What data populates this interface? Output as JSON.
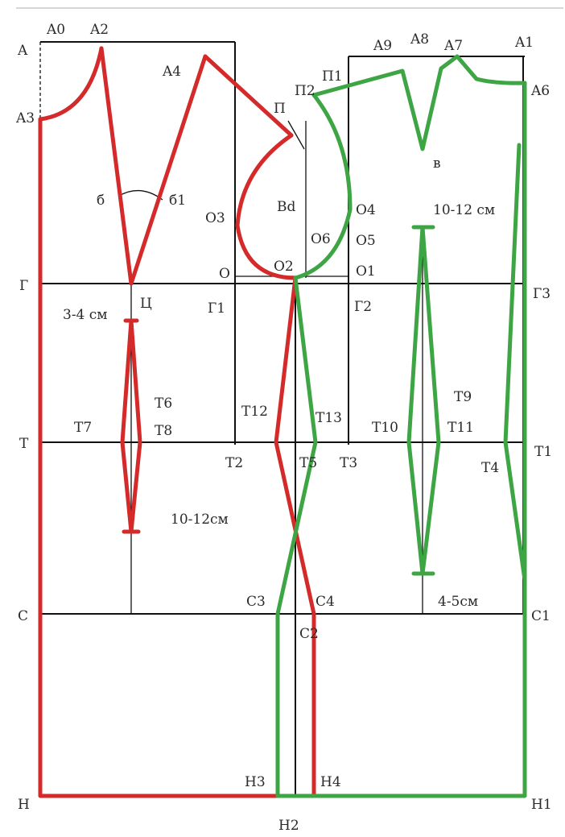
{
  "colors": {
    "back": "#d42a2a",
    "front": "#3da544",
    "lines": "#111111"
  },
  "labels": {
    "A": "A",
    "A0": "A0",
    "A2": "A2",
    "A3": "A3",
    "A4": "A4",
    "A9": "A9",
    "A8": "A8",
    "A7": "A7",
    "A1": "A1",
    "A6": "A6",
    "P": "П",
    "P1": "П1",
    "P2": "П2",
    "v": "в",
    "Bd": "Bd",
    "b": "б",
    "b1": "б1",
    "dim_chest": "10-12 см",
    "O3": "O3",
    "O4": "O4",
    "O5": "O5",
    "O6": "O6",
    "O": "O",
    "O1": "O1",
    "O2": "O2",
    "G": "Г",
    "G1": "Г1",
    "G2": "Г2",
    "G3": "Г3",
    "Ts": "Ц",
    "dim_3_4": "3-4 см",
    "T": "T",
    "T1": "T1",
    "T2": "T2",
    "T3": "T3",
    "T4": "T4",
    "T5": "T5",
    "T6": "T6",
    "T7": "T7",
    "T8": "T8",
    "T9": "T9",
    "T10": "T10",
    "T11": "T11",
    "T12": "T12",
    "T13": "T13",
    "dim_hip": "10-12см",
    "C": "C",
    "C1": "C1",
    "C2": "C2",
    "C3": "C3",
    "C4": "C4",
    "dim_4_5": "4-5см",
    "H": "H",
    "H1": "H1",
    "H2": "H2",
    "H3": "H3",
    "H4": "H4"
  }
}
